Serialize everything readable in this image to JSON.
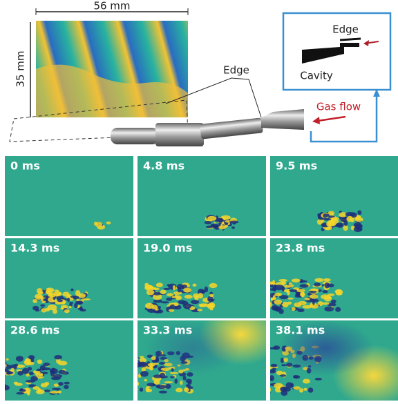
{
  "figure": {
    "scale_width": "56 mm",
    "scale_height": "35 mm",
    "edge_label": "Edge",
    "inset": {
      "edge_label": "Edge",
      "cavity_label": "Cavity"
    },
    "gas_flow_label": "Gas flow",
    "frames": [
      "0 ms",
      "4.8 ms",
      "9.5 ms",
      "14.3 ms",
      "19.0 ms",
      "23.8 ms",
      "28.6 ms",
      "33.3 ms",
      "38.1 ms"
    ]
  }
}
